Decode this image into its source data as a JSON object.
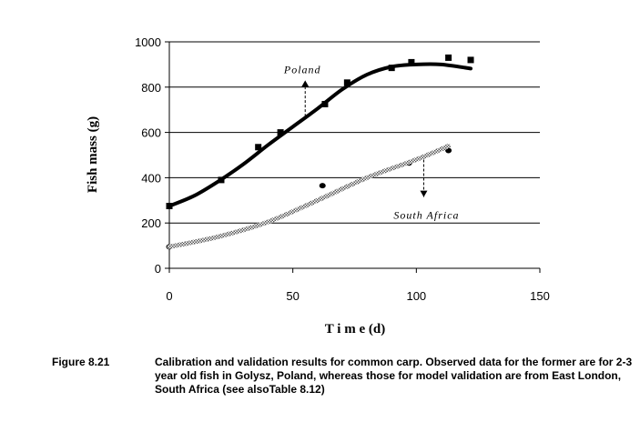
{
  "chart_data": {
    "type": "line",
    "xlabel": "T i m e  (d)",
    "ylabel": "Fish mass (g)",
    "xlim": [
      0,
      150
    ],
    "ylim": [
      0,
      1000
    ],
    "xticks": [
      0,
      50,
      100,
      150
    ],
    "yticks": [
      0,
      200,
      400,
      600,
      800,
      1000
    ],
    "grid": "horizontal",
    "series": [
      {
        "name": "Poland observed",
        "kind": "scatter",
        "marker": "square",
        "x": [
          0,
          21,
          36,
          45,
          63,
          72,
          90,
          98,
          113,
          122
        ],
        "y": [
          275,
          390,
          535,
          600,
          725,
          820,
          885,
          910,
          930,
          920
        ]
      },
      {
        "name": "Poland model",
        "kind": "line",
        "x": [
          0,
          10,
          20,
          30,
          40,
          50,
          60,
          70,
          80,
          90,
          100,
          110,
          122
        ],
        "y": [
          275,
          320,
          385,
          460,
          545,
          625,
          705,
          790,
          855,
          890,
          900,
          900,
          882
        ]
      },
      {
        "name": "South Africa observed",
        "kind": "scatter",
        "marker": "circle",
        "x": [
          0,
          62,
          97,
          113
        ],
        "y": [
          95,
          365,
          465,
          520
        ]
      },
      {
        "name": "South Africa model",
        "kind": "line",
        "x": [
          0,
          20,
          40,
          60,
          80,
          100,
          113
        ],
        "y": [
          95,
          140,
          205,
          300,
          400,
          480,
          540
        ]
      }
    ],
    "annotations": [
      {
        "text": "Poland",
        "arrow_from": [
          55,
          670
        ],
        "arrow_to": [
          55,
          830
        ]
      },
      {
        "text": "South Africa",
        "arrow_from": [
          103,
          480
        ],
        "arrow_to": [
          103,
          315
        ]
      }
    ]
  },
  "caption": {
    "number": "Figure 8.21",
    "text": "Calibration and validation results for common carp.  Observed data for the former are for 2-3 year old fish in Golysz, Poland, whereas those for model validation are from East London, South Africa (see alsoTable 8.12)"
  }
}
